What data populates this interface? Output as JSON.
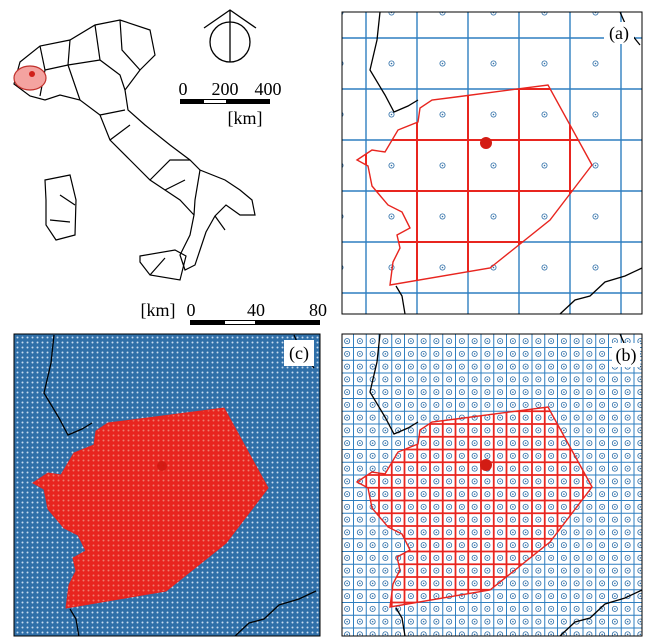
{
  "panels": {
    "a": {
      "label": "(a)"
    },
    "b": {
      "label": "(b)"
    },
    "c": {
      "label": "(c)"
    }
  },
  "scale_bars": [
    {
      "unit": "[km]",
      "ticks": [
        0,
        200,
        400
      ]
    },
    {
      "unit": "[km]",
      "ticks": [
        0,
        40,
        80
      ]
    }
  ]
}
